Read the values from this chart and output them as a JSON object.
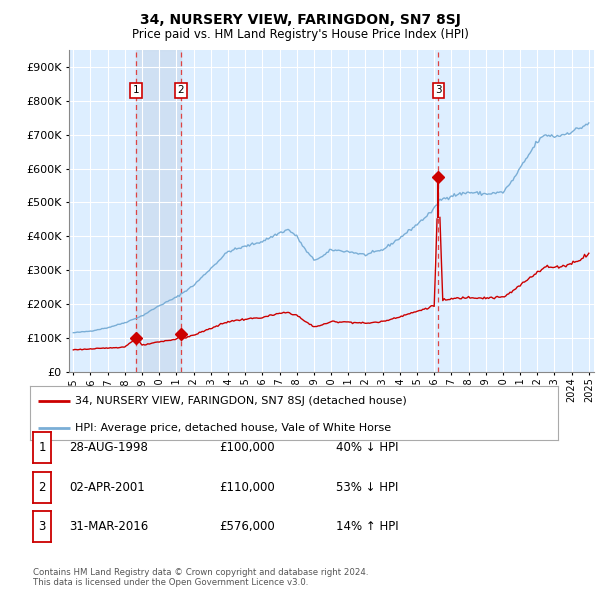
{
  "title": "34, NURSERY VIEW, FARINGDON, SN7 8SJ",
  "subtitle": "Price paid vs. HM Land Registry's House Price Index (HPI)",
  "legend_property": "34, NURSERY VIEW, FARINGDON, SN7 8SJ (detached house)",
  "legend_hpi": "HPI: Average price, detached house, Vale of White Horse",
  "footer": "Contains HM Land Registry data © Crown copyright and database right 2024.\nThis data is licensed under the Open Government Licence v3.0.",
  "ylim": [
    0,
    950000
  ],
  "yticks": [
    0,
    100000,
    200000,
    300000,
    400000,
    500000,
    600000,
    700000,
    800000,
    900000
  ],
  "sales": [
    {
      "date_num": 1998.66,
      "price": 100000,
      "label": "1",
      "date_str": "28-AUG-1998",
      "amount": "£100,000",
      "pct": "40% ↓ HPI"
    },
    {
      "date_num": 2001.25,
      "price": 110000,
      "label": "2",
      "date_str": "02-APR-2001",
      "amount": "£110,000",
      "pct": "53% ↓ HPI"
    },
    {
      "date_num": 2016.25,
      "price": 576000,
      "label": "3",
      "date_str": "31-MAR-2016",
      "amount": "£576,000",
      "pct": "14% ↑ HPI"
    }
  ],
  "sale_color": "#cc0000",
  "vline_color": "#dd4444",
  "shade_color": "#ccddf0",
  "hpi_color": "#7aaed6",
  "xtick_years": [
    1995,
    1996,
    1997,
    1998,
    1999,
    2000,
    2001,
    2002,
    2003,
    2004,
    2005,
    2006,
    2007,
    2008,
    2009,
    2010,
    2011,
    2012,
    2013,
    2014,
    2015,
    2016,
    2017,
    2018,
    2019,
    2020,
    2021,
    2022,
    2023,
    2024,
    2025
  ],
  "background_plot": "#ddeeff",
  "background_fig": "#ffffff",
  "grid_color": "#ffffff",
  "table_rows": [
    {
      "num": "1",
      "date": "28-AUG-1998",
      "amount": "£100,000",
      "pct": "40% ↓ HPI"
    },
    {
      "num": "2",
      "date": "02-APR-2001",
      "amount": "£110,000",
      "pct": "53% ↓ HPI"
    },
    {
      "num": "3",
      "date": "31-MAR-2016",
      "amount": "£576,000",
      "pct": "14% ↑ HPI"
    }
  ]
}
